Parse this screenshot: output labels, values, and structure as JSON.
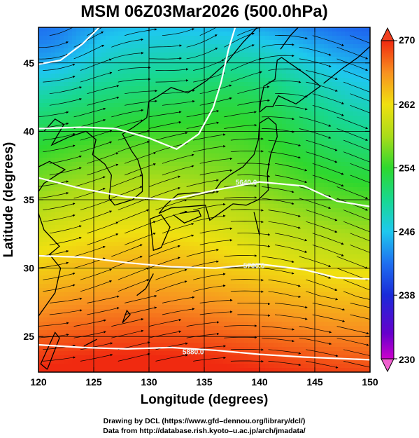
{
  "title": "MSM 06Z03Mar2026 (500.0hPa)",
  "x_axis": {
    "label": "Longitude (degrees)",
    "ticks": [
      "120",
      "125",
      "130",
      "135",
      "140",
      "145",
      "150"
    ],
    "range": [
      120,
      150
    ]
  },
  "y_axis": {
    "label": "Latitude  (degrees)",
    "ticks": [
      "25",
      "30",
      "35",
      "40",
      "45"
    ],
    "range": [
      22.4,
      47.6
    ]
  },
  "colorbar": {
    "ticks": [
      "230",
      "238",
      "246",
      "254",
      "262",
      "270"
    ],
    "range": [
      230,
      270
    ],
    "unit": ""
  },
  "contours": [
    {
      "label": "5880.0"
    },
    {
      "label": "5760.0"
    },
    {
      "label": "5640.0"
    },
    {
      "label": ""
    },
    {
      "label": ""
    }
  ],
  "credits": {
    "line1": "Drawing by DCL (https://www.gfd–dennou.org/library/dcl/)",
    "line2": "Data from http://database.rish.kyoto–u.ac.jp/arch/jmadata/"
  },
  "colors": {
    "grid": "#000000",
    "coastline": "#000000",
    "contour": "#ffffff",
    "streamline": "#000000"
  }
}
